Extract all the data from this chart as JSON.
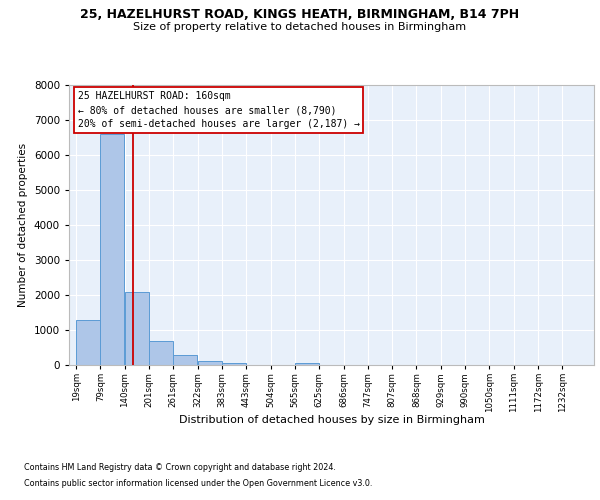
{
  "title1": "25, HAZELHURST ROAD, KINGS HEATH, BIRMINGHAM, B14 7PH",
  "title2": "Size of property relative to detached houses in Birmingham",
  "xlabel": "Distribution of detached houses by size in Birmingham",
  "ylabel": "Number of detached properties",
  "footnote1": "Contains HM Land Registry data © Crown copyright and database right 2024.",
  "footnote2": "Contains public sector information licensed under the Open Government Licence v3.0.",
  "property_label": "25 HAZELHURST ROAD: 160sqm",
  "annotation_line1": "← 80% of detached houses are smaller (8,790)",
  "annotation_line2": "20% of semi-detached houses are larger (2,187) →",
  "bar_labels": [
    "19sqm",
    "79sqm",
    "140sqm",
    "201sqm",
    "261sqm",
    "322sqm",
    "383sqm",
    "443sqm",
    "504sqm",
    "565sqm",
    "625sqm",
    "686sqm",
    "747sqm",
    "807sqm",
    "868sqm",
    "929sqm",
    "990sqm",
    "1050sqm",
    "1111sqm",
    "1172sqm",
    "1232sqm"
  ],
  "bar_left_edges": [
    19,
    79,
    140,
    201,
    261,
    322,
    383,
    443,
    504,
    565,
    625,
    686,
    747,
    807,
    868,
    929,
    990,
    1050,
    1111,
    1172,
    1232
  ],
  "bar_values": [
    1300,
    6600,
    2100,
    700,
    290,
    110,
    60,
    0,
    0,
    70,
    0,
    0,
    0,
    0,
    0,
    0,
    0,
    0,
    0,
    0,
    0
  ],
  "bin_width": 61,
  "bar_color": "#aec6e8",
  "bar_edge_color": "#5b9bd5",
  "vline_color": "#cc0000",
  "vline_x": 160,
  "background_color": "#e8f0fa",
  "grid_color": "#ffffff",
  "ylim": [
    0,
    8000
  ],
  "yticks": [
    0,
    1000,
    2000,
    3000,
    4000,
    5000,
    6000,
    7000,
    8000
  ]
}
